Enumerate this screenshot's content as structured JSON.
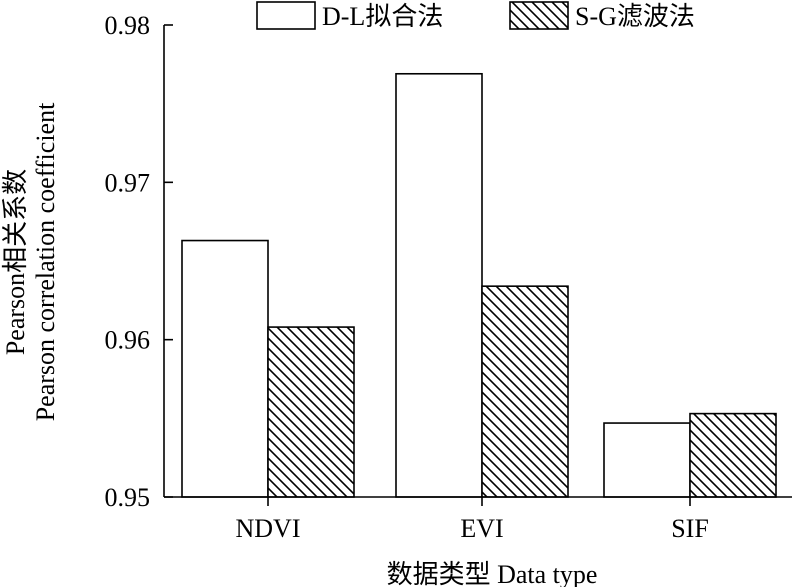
{
  "chart_data": {
    "type": "bar",
    "categories": [
      "NDVI",
      "EVI",
      "SIF"
    ],
    "series": [
      {
        "name": "D-L拟合法",
        "values": [
          0.9663,
          0.9769,
          0.9547
        ],
        "pattern": "solid-white"
      },
      {
        "name": "S-G滤波法",
        "values": [
          0.9608,
          0.9634,
          0.9553
        ],
        "pattern": "diagonal-hatch"
      }
    ],
    "xlabel": "数据类型 Data type",
    "ylabel_line1": "Pearson相关系数",
    "ylabel_line2": "Pearson correlation coefficient",
    "ylim": [
      0.95,
      0.98
    ],
    "yticks": [
      "0.95",
      "0.96",
      "0.97",
      "0.98"
    ],
    "ytick_values": [
      0.95,
      0.96,
      0.97,
      0.98
    ],
    "legend_position": "top-center",
    "grid": false,
    "colors": {
      "bar_fill": "#ffffff",
      "stroke": "#000000"
    }
  }
}
